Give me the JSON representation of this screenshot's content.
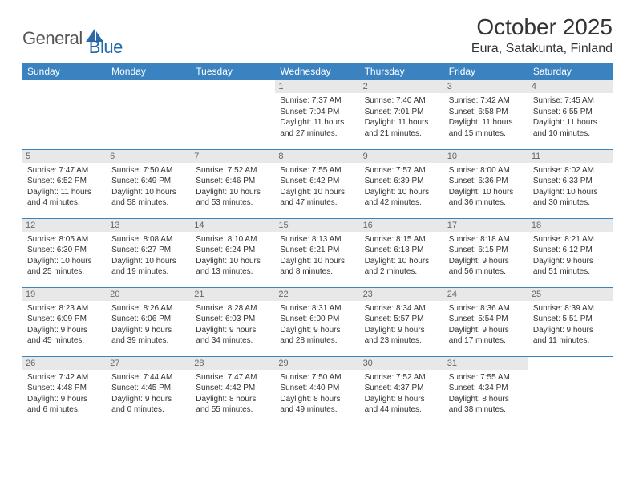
{
  "logo": {
    "general": "General",
    "blue": "Blue"
  },
  "title": "October 2025",
  "location": "Eura, Satakunta, Finland",
  "colors": {
    "header_bg": "#3b83c0",
    "daynum_bg": "#e8e8e8",
    "border": "#3b83c0",
    "logo_gray": "#555555",
    "logo_blue": "#2068a8"
  },
  "weekdays": [
    "Sunday",
    "Monday",
    "Tuesday",
    "Wednesday",
    "Thursday",
    "Friday",
    "Saturday"
  ],
  "weeks": [
    [
      {
        "n": "",
        "sr": "",
        "ss": "",
        "dl": ""
      },
      {
        "n": "",
        "sr": "",
        "ss": "",
        "dl": ""
      },
      {
        "n": "",
        "sr": "",
        "ss": "",
        "dl": ""
      },
      {
        "n": "1",
        "sr": "Sunrise: 7:37 AM",
        "ss": "Sunset: 7:04 PM",
        "dl": "Daylight: 11 hours and 27 minutes."
      },
      {
        "n": "2",
        "sr": "Sunrise: 7:40 AM",
        "ss": "Sunset: 7:01 PM",
        "dl": "Daylight: 11 hours and 21 minutes."
      },
      {
        "n": "3",
        "sr": "Sunrise: 7:42 AM",
        "ss": "Sunset: 6:58 PM",
        "dl": "Daylight: 11 hours and 15 minutes."
      },
      {
        "n": "4",
        "sr": "Sunrise: 7:45 AM",
        "ss": "Sunset: 6:55 PM",
        "dl": "Daylight: 11 hours and 10 minutes."
      }
    ],
    [
      {
        "n": "5",
        "sr": "Sunrise: 7:47 AM",
        "ss": "Sunset: 6:52 PM",
        "dl": "Daylight: 11 hours and 4 minutes."
      },
      {
        "n": "6",
        "sr": "Sunrise: 7:50 AM",
        "ss": "Sunset: 6:49 PM",
        "dl": "Daylight: 10 hours and 58 minutes."
      },
      {
        "n": "7",
        "sr": "Sunrise: 7:52 AM",
        "ss": "Sunset: 6:46 PM",
        "dl": "Daylight: 10 hours and 53 minutes."
      },
      {
        "n": "8",
        "sr": "Sunrise: 7:55 AM",
        "ss": "Sunset: 6:42 PM",
        "dl": "Daylight: 10 hours and 47 minutes."
      },
      {
        "n": "9",
        "sr": "Sunrise: 7:57 AM",
        "ss": "Sunset: 6:39 PM",
        "dl": "Daylight: 10 hours and 42 minutes."
      },
      {
        "n": "10",
        "sr": "Sunrise: 8:00 AM",
        "ss": "Sunset: 6:36 PM",
        "dl": "Daylight: 10 hours and 36 minutes."
      },
      {
        "n": "11",
        "sr": "Sunrise: 8:02 AM",
        "ss": "Sunset: 6:33 PM",
        "dl": "Daylight: 10 hours and 30 minutes."
      }
    ],
    [
      {
        "n": "12",
        "sr": "Sunrise: 8:05 AM",
        "ss": "Sunset: 6:30 PM",
        "dl": "Daylight: 10 hours and 25 minutes."
      },
      {
        "n": "13",
        "sr": "Sunrise: 8:08 AM",
        "ss": "Sunset: 6:27 PM",
        "dl": "Daylight: 10 hours and 19 minutes."
      },
      {
        "n": "14",
        "sr": "Sunrise: 8:10 AM",
        "ss": "Sunset: 6:24 PM",
        "dl": "Daylight: 10 hours and 13 minutes."
      },
      {
        "n": "15",
        "sr": "Sunrise: 8:13 AM",
        "ss": "Sunset: 6:21 PM",
        "dl": "Daylight: 10 hours and 8 minutes."
      },
      {
        "n": "16",
        "sr": "Sunrise: 8:15 AM",
        "ss": "Sunset: 6:18 PM",
        "dl": "Daylight: 10 hours and 2 minutes."
      },
      {
        "n": "17",
        "sr": "Sunrise: 8:18 AM",
        "ss": "Sunset: 6:15 PM",
        "dl": "Daylight: 9 hours and 56 minutes."
      },
      {
        "n": "18",
        "sr": "Sunrise: 8:21 AM",
        "ss": "Sunset: 6:12 PM",
        "dl": "Daylight: 9 hours and 51 minutes."
      }
    ],
    [
      {
        "n": "19",
        "sr": "Sunrise: 8:23 AM",
        "ss": "Sunset: 6:09 PM",
        "dl": "Daylight: 9 hours and 45 minutes."
      },
      {
        "n": "20",
        "sr": "Sunrise: 8:26 AM",
        "ss": "Sunset: 6:06 PM",
        "dl": "Daylight: 9 hours and 39 minutes."
      },
      {
        "n": "21",
        "sr": "Sunrise: 8:28 AM",
        "ss": "Sunset: 6:03 PM",
        "dl": "Daylight: 9 hours and 34 minutes."
      },
      {
        "n": "22",
        "sr": "Sunrise: 8:31 AM",
        "ss": "Sunset: 6:00 PM",
        "dl": "Daylight: 9 hours and 28 minutes."
      },
      {
        "n": "23",
        "sr": "Sunrise: 8:34 AM",
        "ss": "Sunset: 5:57 PM",
        "dl": "Daylight: 9 hours and 23 minutes."
      },
      {
        "n": "24",
        "sr": "Sunrise: 8:36 AM",
        "ss": "Sunset: 5:54 PM",
        "dl": "Daylight: 9 hours and 17 minutes."
      },
      {
        "n": "25",
        "sr": "Sunrise: 8:39 AM",
        "ss": "Sunset: 5:51 PM",
        "dl": "Daylight: 9 hours and 11 minutes."
      }
    ],
    [
      {
        "n": "26",
        "sr": "Sunrise: 7:42 AM",
        "ss": "Sunset: 4:48 PM",
        "dl": "Daylight: 9 hours and 6 minutes."
      },
      {
        "n": "27",
        "sr": "Sunrise: 7:44 AM",
        "ss": "Sunset: 4:45 PM",
        "dl": "Daylight: 9 hours and 0 minutes."
      },
      {
        "n": "28",
        "sr": "Sunrise: 7:47 AM",
        "ss": "Sunset: 4:42 PM",
        "dl": "Daylight: 8 hours and 55 minutes."
      },
      {
        "n": "29",
        "sr": "Sunrise: 7:50 AM",
        "ss": "Sunset: 4:40 PM",
        "dl": "Daylight: 8 hours and 49 minutes."
      },
      {
        "n": "30",
        "sr": "Sunrise: 7:52 AM",
        "ss": "Sunset: 4:37 PM",
        "dl": "Daylight: 8 hours and 44 minutes."
      },
      {
        "n": "31",
        "sr": "Sunrise: 7:55 AM",
        "ss": "Sunset: 4:34 PM",
        "dl": "Daylight: 8 hours and 38 minutes."
      },
      {
        "n": "",
        "sr": "",
        "ss": "",
        "dl": ""
      }
    ]
  ]
}
